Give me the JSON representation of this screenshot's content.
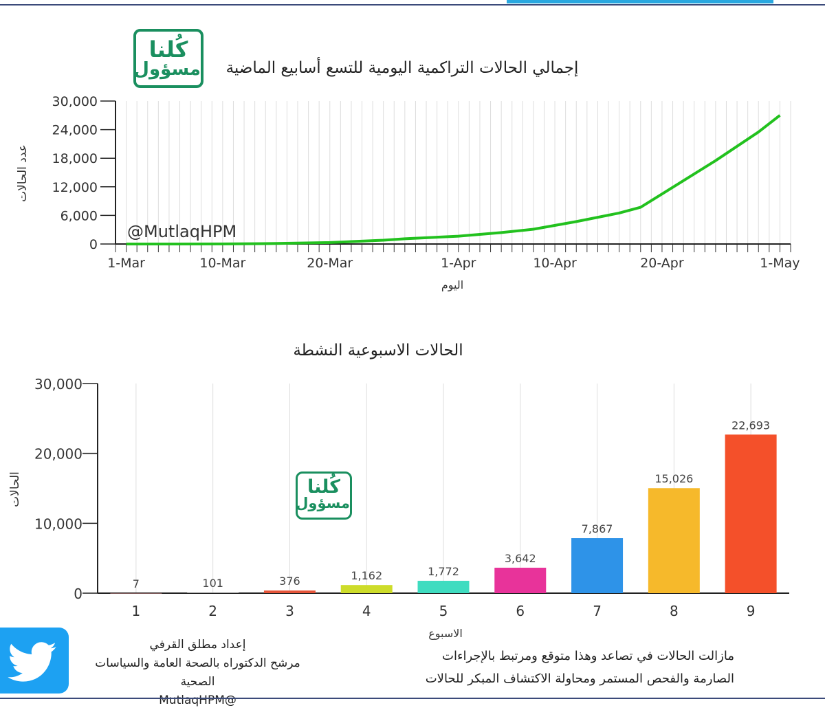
{
  "header": {
    "chart1_title": "إجمالي الحالات التراكمية اليومية للتسع أسابيع الماضية",
    "chart2_title": "الحالات الاسبوعية النشطة"
  },
  "logo": {
    "line1": "كُلنا",
    "line2": "مسؤول",
    "color": "#1a8f5f"
  },
  "footer": {
    "credit_line1": "إعداد مطلق القرفي",
    "credit_line2": "مرشح الدكتوراه  بالصحة العامة والسياسات الصحية",
    "credit_line3": "@MutlaqHPM",
    "note_line1": "مازالت الحالات في تصاعد وهذا متوقع ومرتبط بالإجراءات",
    "note_line2": "الصارمة والفحص المستمر  ومحاولة الاكتشاف المبكر للحالات",
    "twitter_icon": "twitter-bird-icon"
  },
  "chart_data": [
    {
      "type": "line",
      "title": "إجمالي الحالات التراكمية اليومية للتسع أسابيع الماضية",
      "xlabel": "اليوم",
      "ylabel": "عدد الحالات",
      "watermark": "@MutlaqHPM",
      "x_ticks": [
        "1-Mar",
        "10-Mar",
        "20-Mar",
        "1-Apr",
        "10-Apr",
        "20-Apr",
        "1-May"
      ],
      "ylim": [
        0,
        30000
      ],
      "yticks": [
        0,
        6000,
        12000,
        18000,
        24000,
        30000
      ],
      "ytick_labels": [
        "0",
        "6,000",
        "12,000",
        "18,000",
        "24,000",
        "30,000"
      ],
      "grid": "vertical daily",
      "color": "#22c11e",
      "series": [
        {
          "x": [
            "2020-03-01",
            "2020-03-05",
            "2020-03-10",
            "2020-03-15",
            "2020-03-20",
            "2020-03-25",
            "2020-03-27",
            "2020-04-01",
            "2020-04-05",
            "2020-04-08",
            "2020-04-12",
            "2020-04-16",
            "2020-04-18",
            "2020-04-20",
            "2020-04-25",
            "2020-04-29",
            "2020-05-01"
          ],
          "values": [
            0,
            5,
            20,
            100,
            300,
            800,
            1100,
            1650,
            2400,
            3100,
            4700,
            6500,
            7700,
            10500,
            17500,
            23500,
            27000
          ]
        }
      ]
    },
    {
      "type": "bar",
      "title": "الحالات الاسبوعية النشطة",
      "xlabel": "الاسبوع",
      "ylabel": "الحالات",
      "categories": [
        "1",
        "2",
        "3",
        "4",
        "5",
        "6",
        "7",
        "8",
        "9"
      ],
      "values": [
        7,
        101,
        376,
        1162,
        1772,
        3642,
        7867,
        15026,
        22693
      ],
      "value_labels": [
        "7",
        "101",
        "376",
        "1,162",
        "1,772",
        "3,642",
        "7,867",
        "15,026",
        "22,693"
      ],
      "colors": [
        "#f4a3a3",
        "#8a8a8a",
        "#e6553a",
        "#cddc2a",
        "#3fdcc0",
        "#e8339a",
        "#2e93e8",
        "#f6b92b",
        "#f4502a"
      ],
      "ylim": [
        0,
        30000
      ],
      "yticks": [
        0,
        10000,
        20000,
        30000
      ],
      "ytick_labels": [
        "0",
        "10,000",
        "20,000",
        "30,000"
      ],
      "grid": "vertical"
    }
  ]
}
